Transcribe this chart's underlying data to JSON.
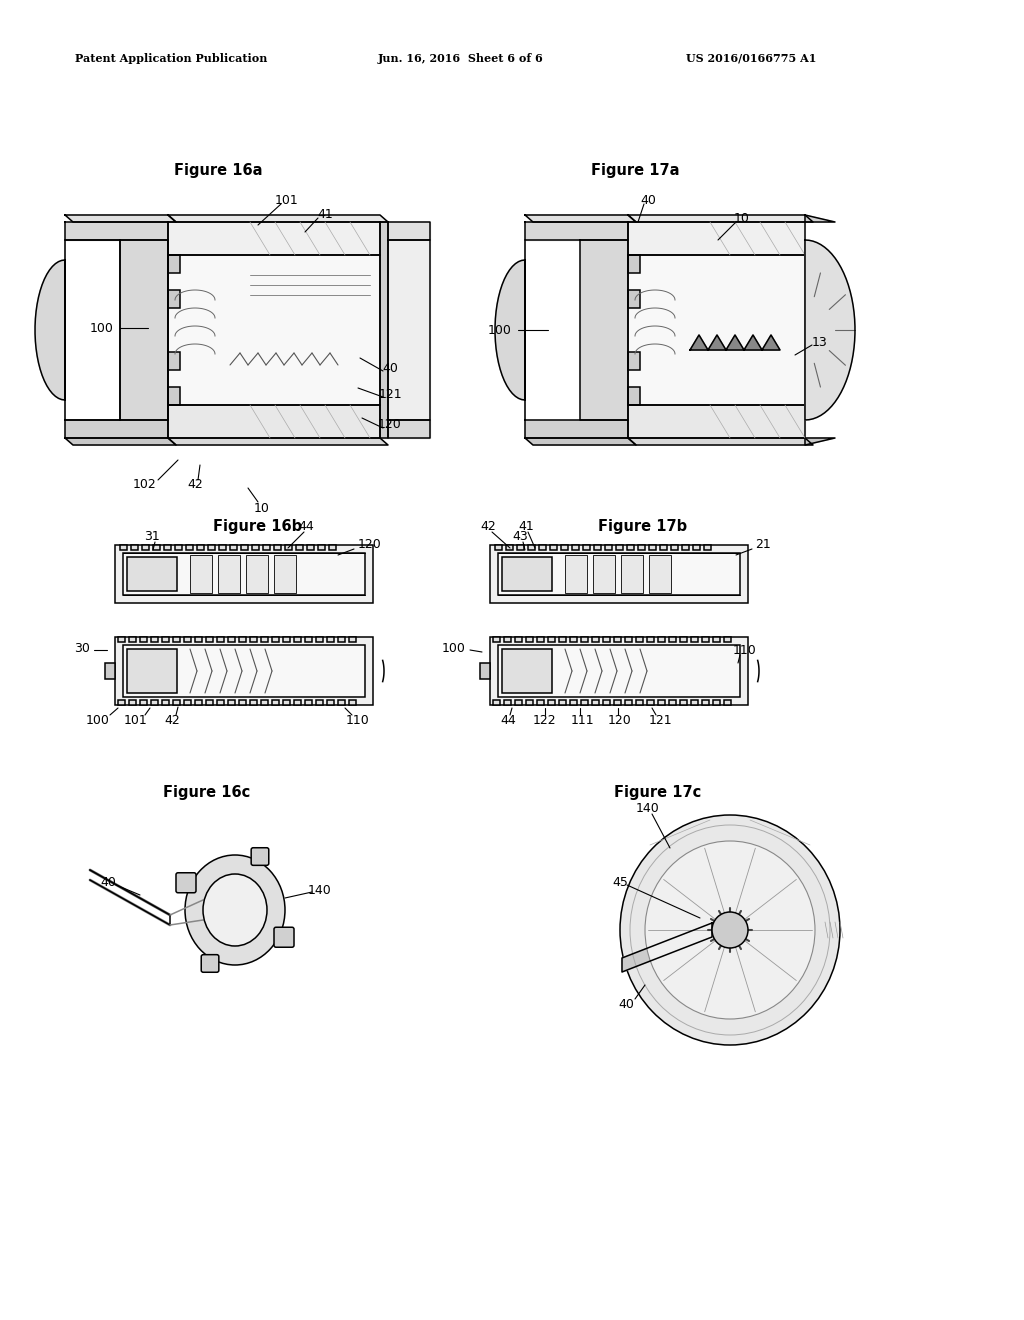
{
  "bg_color": "#ffffff",
  "header_left": "Patent Application Publication",
  "header_mid": "Jun. 16, 2016  Sheet 6 of 6",
  "header_right": "US 2016/0166775 A1",
  "fig16a_title": "Figure 16a",
  "fig17a_title": "Figure 17a",
  "fig16b_title": "Figure 16b",
  "fig17b_title": "Figure 17b",
  "fig16c_title": "Figure 16c",
  "fig17c_title": "Figure 17c",
  "line_color": "#000000",
  "gray_light": "#e8e8e8",
  "gray_med": "#cccccc",
  "gray_dark": "#aaaaaa",
  "label_fontsize": 9,
  "title_fontsize": 10.5
}
